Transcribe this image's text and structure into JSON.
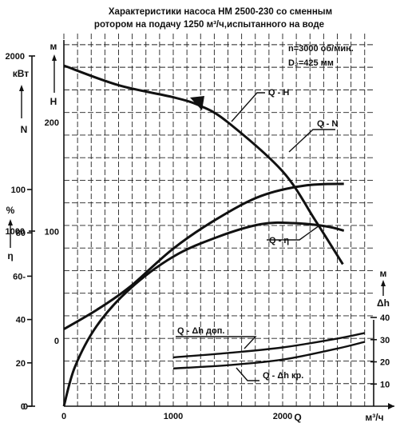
{
  "chart_data": {
    "type": "line",
    "title_lines": [
      "Характеристики насоса НМ 2500-230 со сменным",
      "ротором  на подачу 1250 м³/ч,испытанного на воде"
    ],
    "info": [
      "n=3000 об/мин.",
      "D₂=425 мм"
    ],
    "x_axis": {
      "label": "Q",
      "unit": "м³/ч",
      "range": [
        0,
        2800
      ],
      "ticks": [
        0,
        1000,
        2000
      ]
    },
    "y_axes": [
      {
        "quantity": "N",
        "unit": "кВт",
        "range": [
          0,
          2000
        ],
        "ticks": [
          0,
          1000,
          2000
        ]
      },
      {
        "quantity": "η",
        "unit": "%",
        "range": [
          0,
          100
        ],
        "ticks": [
          0,
          20,
          40,
          60,
          80,
          100
        ]
      },
      {
        "quantity": "H",
        "unit": "м",
        "range": [
          -50,
          300
        ],
        "ticks": [
          0,
          100,
          200
        ]
      },
      {
        "quantity": "Δh",
        "unit": "м",
        "range": [
          0,
          45
        ],
        "ticks": [
          10,
          20,
          30,
          40
        ]
      }
    ],
    "series": [
      {
        "name": "Q - H",
        "axis": "H",
        "x": [
          0,
          500,
          1000,
          1250,
          1500,
          2000,
          2300,
          2550
        ],
        "y": [
          252,
          234,
          223,
          215,
          200,
          155,
          110,
          70
        ]
      },
      {
        "name": "Q - N",
        "axis": "N",
        "x": [
          0,
          300,
          600,
          1000,
          1400,
          1800,
          2200,
          2560
        ],
        "y": [
          440,
          550,
          680,
          900,
          1070,
          1200,
          1260,
          1270
        ]
      },
      {
        "name": "Q - η",
        "axis": "η",
        "x": [
          0,
          100,
          300,
          600,
          1000,
          1400,
          1800,
          2100,
          2400,
          2560
        ],
        "y": [
          0,
          18,
          37,
          54,
          69,
          78,
          84,
          84.5,
          83,
          81
        ]
      },
      {
        "name": "Q - Δh доп.",
        "axis": "Δh",
        "x": [
          1000,
          1500,
          2000,
          2500,
          2750
        ],
        "y": [
          22,
          24,
          26.5,
          30.5,
          33
        ]
      },
      {
        "name": "Q - Δh кр.",
        "axis": "Δh",
        "x": [
          1000,
          1500,
          2000,
          2500,
          2750
        ],
        "y": [
          17,
          18.5,
          21,
          26,
          29
        ]
      }
    ],
    "grid": true
  },
  "labels": {
    "N": "N",
    "N_unit": "кВт",
    "eta": "η",
    "eta_unit": "%",
    "H": "H",
    "H_unit": "м",
    "dh": "Δh",
    "dh_unit": "м",
    "Q": "Q",
    "Q_unit": "м³/ч"
  }
}
